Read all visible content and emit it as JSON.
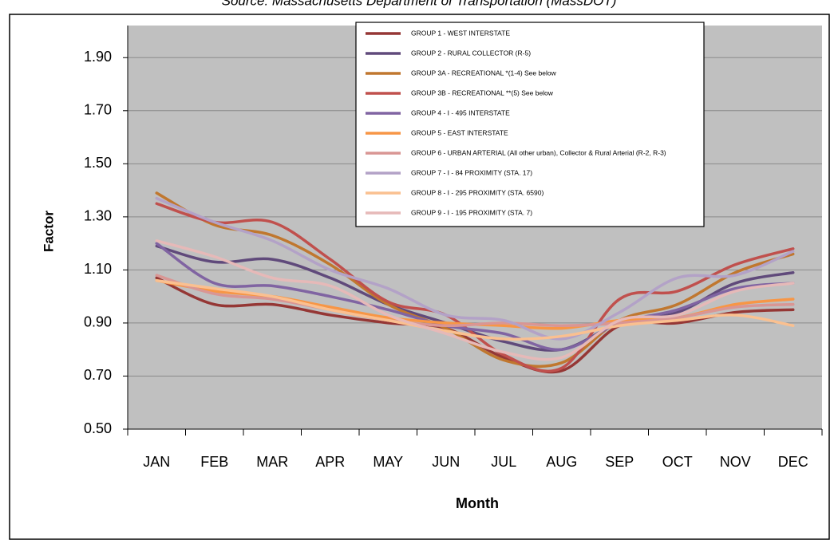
{
  "chart_data": {
    "type": "line",
    "subtitle": "Source: Massachusetts Department of Transportation (MassDOT)",
    "x_label": "Month",
    "y_label": "Factor",
    "categories": [
      "JAN",
      "FEB",
      "MAR",
      "APR",
      "MAY",
      "JUN",
      "JUL",
      "AUG",
      "SEP",
      "OCT",
      "NOV",
      "DEC"
    ],
    "ylim": [
      0.5,
      2.0
    ],
    "yticks": [
      {
        "value": 0.5,
        "label": "0.50"
      },
      {
        "value": 0.7,
        "label": "0.70"
      },
      {
        "value": 0.9,
        "label": "0.90"
      },
      {
        "value": 1.1,
        "label": "1.10"
      },
      {
        "value": 1.3,
        "label": "1.30"
      },
      {
        "value": 1.5,
        "label": "1.50"
      },
      {
        "value": 1.7,
        "label": "1.70"
      },
      {
        "value": 1.9,
        "label": "1.90"
      }
    ],
    "grid": true,
    "smooth": true,
    "legend": "upper center",
    "series": [
      {
        "name": "GROUP 1 - WEST INTERSTATE",
        "color": "#953735",
        "values": [
          1.07,
          0.97,
          0.97,
          0.93,
          0.9,
          0.88,
          0.77,
          0.72,
          0.89,
          0.9,
          0.94,
          0.95
        ]
      },
      {
        "name": "GROUP 2 - RURAL COLLECTOR (R-5)",
        "color": "#604a7b",
        "values": [
          1.19,
          1.13,
          1.14,
          1.07,
          0.97,
          0.9,
          0.83,
          0.8,
          0.9,
          0.94,
          1.05,
          1.09
        ]
      },
      {
        "name": "GROUP 3A - RECREATIONAL *(1-4) See below",
        "color": "#c0772f",
        "values": [
          1.39,
          1.27,
          1.23,
          1.12,
          0.97,
          0.88,
          0.76,
          0.75,
          0.91,
          0.97,
          1.09,
          1.16
        ]
      },
      {
        "name": "GROUP 3B - RECREATIONAL **(5) See below",
        "color": "#c0504d",
        "values": [
          1.35,
          1.28,
          1.28,
          1.14,
          0.98,
          0.93,
          0.78,
          0.73,
          0.99,
          1.02,
          1.12,
          1.18
        ]
      },
      {
        "name": "GROUP 4 - I - 495 INTERSTATE",
        "color": "#8064a2",
        "values": [
          1.2,
          1.05,
          1.04,
          1.0,
          0.95,
          0.89,
          0.86,
          0.8,
          0.9,
          0.95,
          1.03,
          1.05
        ]
      },
      {
        "name": "GROUP 5 - EAST INTERSTATE",
        "color": "#f79646",
        "values": [
          1.06,
          1.02,
          1.0,
          0.96,
          0.92,
          0.9,
          0.89,
          0.88,
          0.91,
          0.92,
          0.97,
          0.99
        ]
      },
      {
        "name": "GROUP 6 - URBAN ARTERIAL (All other urban), Collector & Rural Arterial (R-2, R-3)",
        "color": "#d99694",
        "values": [
          1.08,
          1.01,
          0.99,
          0.95,
          0.91,
          0.89,
          0.9,
          0.89,
          0.9,
          0.92,
          0.96,
          0.97
        ]
      },
      {
        "name": "GROUP 7 - I - 84 PROXIMITY (STA. 17)",
        "color": "#b3a2c7",
        "values": [
          1.37,
          1.28,
          1.21,
          1.1,
          1.03,
          0.93,
          0.91,
          0.84,
          0.94,
          1.07,
          1.08,
          1.17
        ]
      },
      {
        "name": "GROUP 8 - I - 295 PROXIMITY (STA. 6590)",
        "color": "#fac090",
        "values": [
          1.06,
          1.03,
          1.0,
          0.95,
          0.91,
          0.87,
          0.84,
          0.85,
          0.89,
          0.91,
          0.93,
          0.89
        ]
      },
      {
        "name": "GROUP 9 - I - 195 PROXIMITY (STA. 7)",
        "color": "#e6b9b8",
        "values": [
          1.21,
          1.15,
          1.07,
          1.04,
          0.93,
          0.86,
          0.79,
          0.77,
          0.91,
          0.93,
          1.02,
          1.05
        ]
      }
    ]
  }
}
